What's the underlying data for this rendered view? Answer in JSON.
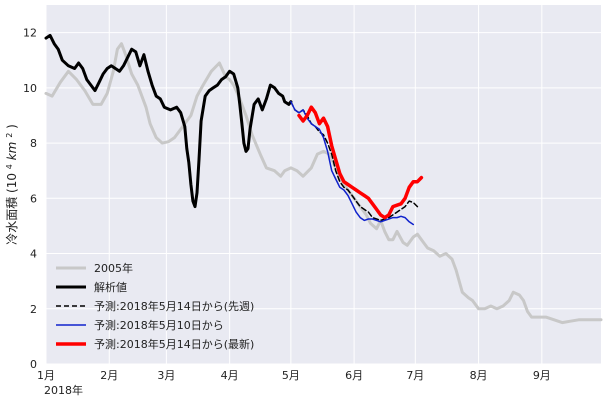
{
  "chart_data": {
    "type": "line",
    "title": "",
    "ylabel_prefix": "冷水面積",
    "ylabel_unit_open": "(10",
    "ylabel_unit_exp": "4",
    "ylabel_unit_mid": "km",
    "ylabel_unit_exp2": "2",
    "ylabel_unit_close": ")",
    "xlabel": "",
    "year_label": "2018年",
    "x_ticks": [
      "1月",
      "2月",
      "3月",
      "4月",
      "5月",
      "6月",
      "7月",
      "8月",
      "9月"
    ],
    "x_tick_days": [
      1,
      32,
      60,
      91,
      121,
      152,
      182,
      213,
      244
    ],
    "xlim": [
      1,
      273
    ],
    "ylim": [
      0,
      13
    ],
    "y_ticks": [
      0,
      2,
      4,
      6,
      8,
      10,
      12
    ],
    "grid": true,
    "legend_position": "lower-left",
    "colors": {
      "background": "#e9eaf2",
      "grid": "#ffffff",
      "y2005": "#c8c8c8",
      "analysis": "#000000",
      "forecast_prev_week": "#000000",
      "forecast_0510": "#1022cc",
      "forecast_latest": "#ff0000"
    },
    "series": [
      {
        "name": "2005年",
        "key": "y2005",
        "style": "solid-thick",
        "points": [
          [
            1,
            9.8
          ],
          [
            4,
            9.7
          ],
          [
            8,
            10.2
          ],
          [
            12,
            10.6
          ],
          [
            16,
            10.3
          ],
          [
            20,
            9.9
          ],
          [
            24,
            9.4
          ],
          [
            28,
            9.4
          ],
          [
            31,
            9.8
          ],
          [
            34,
            10.6
          ],
          [
            36,
            11.4
          ],
          [
            38,
            11.6
          ],
          [
            40,
            11.2
          ],
          [
            43,
            10.5
          ],
          [
            46,
            10.1
          ],
          [
            50,
            9.3
          ],
          [
            52,
            8.7
          ],
          [
            55,
            8.2
          ],
          [
            58,
            8.0
          ],
          [
            61,
            8.05
          ],
          [
            64,
            8.2
          ],
          [
            67,
            8.5
          ],
          [
            70,
            8.8
          ],
          [
            72,
            9.0
          ],
          [
            75,
            9.7
          ],
          [
            78,
            10.1
          ],
          [
            82,
            10.6
          ],
          [
            86,
            10.9
          ],
          [
            89,
            10.4
          ],
          [
            91,
            10.3
          ],
          [
            93,
            10.1
          ],
          [
            96,
            9.6
          ],
          [
            99,
            9.0
          ],
          [
            102,
            8.3
          ],
          [
            106,
            7.6
          ],
          [
            109,
            7.1
          ],
          [
            113,
            7.0
          ],
          [
            116,
            6.8
          ],
          [
            118,
            7.0
          ],
          [
            121,
            7.1
          ],
          [
            124,
            7.0
          ],
          [
            127,
            6.8
          ],
          [
            131,
            7.1
          ],
          [
            134,
            7.6
          ],
          [
            137,
            7.7
          ],
          [
            140,
            7.6
          ],
          [
            143,
            7.1
          ],
          [
            146,
            6.6
          ],
          [
            149,
            6.3
          ],
          [
            152,
            6.0
          ],
          [
            155,
            5.7
          ],
          [
            158,
            5.4
          ],
          [
            160,
            5.1
          ],
          [
            163,
            4.9
          ],
          [
            165,
            5.2
          ],
          [
            167,
            4.8
          ],
          [
            169,
            4.5
          ],
          [
            171,
            4.5
          ],
          [
            173,
            4.8
          ],
          [
            176,
            4.4
          ],
          [
            178,
            4.3
          ],
          [
            181,
            4.6
          ],
          [
            183,
            4.7
          ],
          [
            186,
            4.4
          ],
          [
            188,
            4.2
          ],
          [
            191,
            4.1
          ],
          [
            194,
            3.9
          ],
          [
            197,
            4.0
          ],
          [
            200,
            3.8
          ],
          [
            202,
            3.4
          ],
          [
            205,
            2.6
          ],
          [
            208,
            2.4
          ],
          [
            210,
            2.3
          ],
          [
            213,
            2.0
          ],
          [
            216,
            2.0
          ],
          [
            219,
            2.1
          ],
          [
            222,
            2.0
          ],
          [
            225,
            2.1
          ],
          [
            228,
            2.3
          ],
          [
            230,
            2.6
          ],
          [
            233,
            2.5
          ],
          [
            235,
            2.3
          ],
          [
            237,
            1.9
          ],
          [
            239,
            1.7
          ],
          [
            242,
            1.7
          ],
          [
            246,
            1.7
          ],
          [
            250,
            1.6
          ],
          [
            254,
            1.5
          ],
          [
            258,
            1.55
          ],
          [
            262,
            1.6
          ],
          [
            266,
            1.6
          ],
          [
            270,
            1.6
          ],
          [
            273,
            1.6
          ]
        ]
      },
      {
        "name": "解析値",
        "key": "analysis",
        "style": "solid-thick",
        "points": [
          [
            1,
            11.8
          ],
          [
            3,
            11.9
          ],
          [
            5,
            11.6
          ],
          [
            7,
            11.4
          ],
          [
            9,
            11.0
          ],
          [
            12,
            10.8
          ],
          [
            15,
            10.7
          ],
          [
            17,
            10.9
          ],
          [
            19,
            10.7
          ],
          [
            21,
            10.3
          ],
          [
            23,
            10.1
          ],
          [
            25,
            9.9
          ],
          [
            27,
            10.2
          ],
          [
            29,
            10.5
          ],
          [
            31,
            10.7
          ],
          [
            33,
            10.8
          ],
          [
            35,
            10.7
          ],
          [
            37,
            10.6
          ],
          [
            39,
            10.8
          ],
          [
            41,
            11.1
          ],
          [
            43,
            11.4
          ],
          [
            45,
            11.3
          ],
          [
            47,
            10.8
          ],
          [
            49,
            11.2
          ],
          [
            51,
            10.6
          ],
          [
            53,
            10.1
          ],
          [
            55,
            9.7
          ],
          [
            57,
            9.6
          ],
          [
            59,
            9.3
          ],
          [
            62,
            9.2
          ],
          [
            65,
            9.3
          ],
          [
            67,
            9.1
          ],
          [
            69,
            8.6
          ],
          [
            70,
            7.8
          ],
          [
            71,
            7.3
          ],
          [
            72,
            6.5
          ],
          [
            73,
            5.9
          ],
          [
            74,
            5.7
          ],
          [
            75,
            6.2
          ],
          [
            76,
            7.4
          ],
          [
            77,
            8.8
          ],
          [
            79,
            9.7
          ],
          [
            81,
            9.9
          ],
          [
            83,
            10.0
          ],
          [
            85,
            10.1
          ],
          [
            87,
            10.3
          ],
          [
            89,
            10.4
          ],
          [
            91,
            10.6
          ],
          [
            93,
            10.5
          ],
          [
            95,
            10.0
          ],
          [
            96,
            9.4
          ],
          [
            97,
            8.7
          ],
          [
            98,
            8.0
          ],
          [
            99,
            7.7
          ],
          [
            100,
            7.8
          ],
          [
            101,
            8.5
          ],
          [
            103,
            9.4
          ],
          [
            105,
            9.6
          ],
          [
            107,
            9.2
          ],
          [
            109,
            9.6
          ],
          [
            111,
            10.1
          ],
          [
            113,
            10.0
          ],
          [
            115,
            9.8
          ],
          [
            117,
            9.7
          ],
          [
            118,
            9.5
          ],
          [
            120,
            9.4
          ],
          [
            121,
            9.5
          ]
        ]
      },
      {
        "name": "予測:2018年5月14日から(先週)",
        "key": "forecast_prev_week",
        "style": "dashed",
        "points": [
          [
            121,
            9.5
          ],
          [
            123,
            9.2
          ],
          [
            125,
            9.1
          ],
          [
            127,
            9.2
          ],
          [
            129,
            9.0
          ],
          [
            131,
            8.7
          ],
          [
            133,
            8.6
          ],
          [
            135,
            8.4
          ],
          [
            137,
            8.3
          ],
          [
            139,
            8.0
          ],
          [
            141,
            7.6
          ],
          [
            143,
            7.0
          ],
          [
            145,
            6.6
          ],
          [
            147,
            6.4
          ],
          [
            149,
            6.3
          ],
          [
            151,
            6.1
          ],
          [
            153,
            5.9
          ],
          [
            155,
            5.7
          ],
          [
            157,
            5.6
          ],
          [
            159,
            5.5
          ],
          [
            161,
            5.3
          ],
          [
            163,
            5.25
          ],
          [
            165,
            5.2
          ],
          [
            167,
            5.25
          ],
          [
            169,
            5.3
          ],
          [
            171,
            5.4
          ],
          [
            173,
            5.5
          ],
          [
            175,
            5.6
          ],
          [
            177,
            5.7
          ],
          [
            179,
            5.9
          ],
          [
            181,
            5.85
          ],
          [
            183,
            5.7
          ]
        ]
      },
      {
        "name": "予測:2018年5月10日から",
        "key": "forecast_0510",
        "style": "solid-thin",
        "points": [
          [
            121,
            9.5
          ],
          [
            123,
            9.2
          ],
          [
            125,
            9.1
          ],
          [
            127,
            9.2
          ],
          [
            129,
            8.9
          ],
          [
            131,
            8.7
          ],
          [
            133,
            8.6
          ],
          [
            135,
            8.5
          ],
          [
            137,
            8.2
          ],
          [
            139,
            7.7
          ],
          [
            141,
            7.0
          ],
          [
            143,
            6.7
          ],
          [
            145,
            6.4
          ],
          [
            147,
            6.3
          ],
          [
            149,
            6.1
          ],
          [
            151,
            5.8
          ],
          [
            153,
            5.5
          ],
          [
            155,
            5.3
          ],
          [
            157,
            5.2
          ],
          [
            159,
            5.25
          ],
          [
            161,
            5.25
          ],
          [
            163,
            5.2
          ],
          [
            165,
            5.15
          ],
          [
            167,
            5.2
          ],
          [
            169,
            5.25
          ],
          [
            171,
            5.3
          ],
          [
            173,
            5.3
          ],
          [
            175,
            5.35
          ],
          [
            177,
            5.3
          ],
          [
            179,
            5.15
          ],
          [
            181,
            5.05
          ]
        ]
      },
      {
        "name": "予測:2018年5月14日から(最新)",
        "key": "forecast_latest",
        "style": "solid-thick",
        "points": [
          [
            125,
            9.0
          ],
          [
            127,
            8.8
          ],
          [
            129,
            9.0
          ],
          [
            131,
            9.3
          ],
          [
            133,
            9.1
          ],
          [
            135,
            8.7
          ],
          [
            137,
            8.9
          ],
          [
            139,
            8.6
          ],
          [
            141,
            7.9
          ],
          [
            143,
            7.4
          ],
          [
            145,
            6.9
          ],
          [
            147,
            6.6
          ],
          [
            149,
            6.5
          ],
          [
            151,
            6.4
          ],
          [
            153,
            6.3
          ],
          [
            155,
            6.2
          ],
          [
            157,
            6.1
          ],
          [
            159,
            6.0
          ],
          [
            161,
            5.8
          ],
          [
            163,
            5.6
          ],
          [
            165,
            5.4
          ],
          [
            167,
            5.3
          ],
          [
            169,
            5.4
          ],
          [
            171,
            5.7
          ],
          [
            173,
            5.75
          ],
          [
            175,
            5.8
          ],
          [
            177,
            6.0
          ],
          [
            179,
            6.4
          ],
          [
            181,
            6.6
          ],
          [
            183,
            6.6
          ],
          [
            185,
            6.75
          ]
        ]
      }
    ]
  }
}
